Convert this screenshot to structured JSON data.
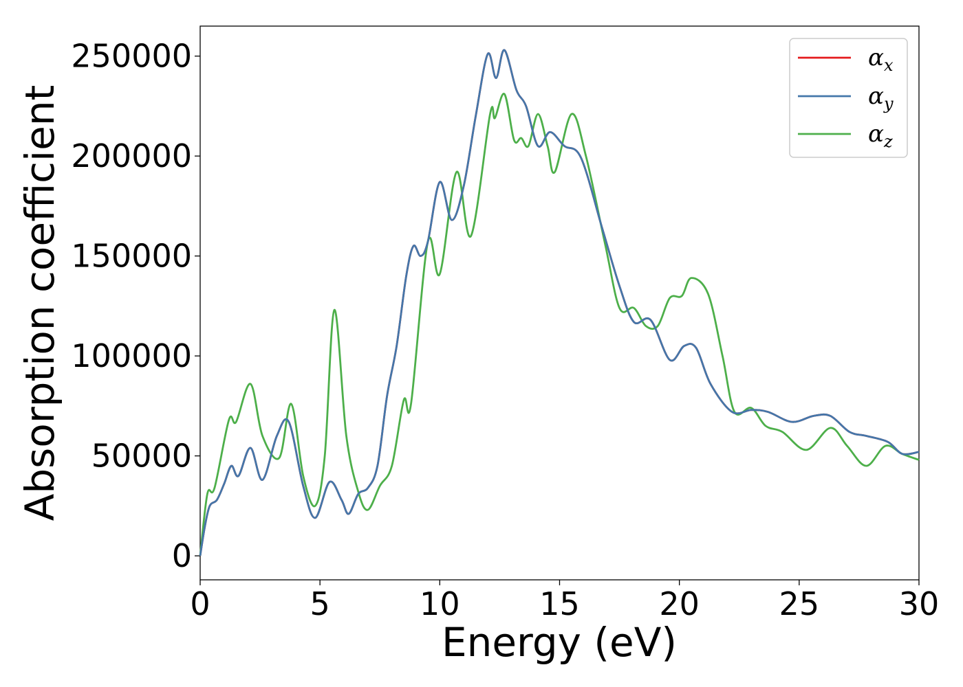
{
  "chart_data": {
    "type": "line",
    "title": "",
    "xlabel": "Energy (eV)",
    "ylabel": "Absorption coefficient",
    "xlim": [
      0,
      30
    ],
    "ylim": [
      -12000,
      265000
    ],
    "xticks": [
      0,
      5,
      10,
      15,
      20,
      25,
      30
    ],
    "yticks": [
      0,
      50000,
      100000,
      150000,
      200000,
      250000
    ],
    "grid": false,
    "legend_position": "top-right",
    "series": [
      {
        "name": "α",
        "subscript": "x",
        "color": "#e41a1c",
        "points": [
          [
            0,
            0
          ],
          [
            0.2,
            15000
          ],
          [
            0.4,
            25000
          ],
          [
            0.7,
            28000
          ],
          [
            1.0,
            36000
          ],
          [
            1.3,
            45000
          ],
          [
            1.6,
            40000
          ],
          [
            2.1,
            54000
          ],
          [
            2.6,
            38000
          ],
          [
            3.2,
            60000
          ],
          [
            3.7,
            67000
          ],
          [
            4.3,
            35000
          ],
          [
            4.8,
            19000
          ],
          [
            5.4,
            37000
          ],
          [
            5.9,
            28000
          ],
          [
            6.2,
            21000
          ],
          [
            6.6,
            31000
          ],
          [
            7.0,
            34000
          ],
          [
            7.4,
            45000
          ],
          [
            7.8,
            80000
          ],
          [
            8.2,
            105000
          ],
          [
            8.6,
            140000
          ],
          [
            8.9,
            155000
          ],
          [
            9.2,
            150000
          ],
          [
            9.5,
            157000
          ],
          [
            10.0,
            187000
          ],
          [
            10.5,
            168000
          ],
          [
            11.0,
            185000
          ],
          [
            11.5,
            220000
          ],
          [
            12.0,
            251000
          ],
          [
            12.35,
            239000
          ],
          [
            12.7,
            253000
          ],
          [
            13.2,
            233000
          ],
          [
            13.6,
            225000
          ],
          [
            14.1,
            205000
          ],
          [
            14.6,
            212000
          ],
          [
            15.2,
            205000
          ],
          [
            15.9,
            199000
          ],
          [
            16.8,
            163000
          ],
          [
            17.5,
            135000
          ],
          [
            18.1,
            117000
          ],
          [
            18.8,
            118000
          ],
          [
            19.6,
            98000
          ],
          [
            20.2,
            105000
          ],
          [
            20.7,
            104000
          ],
          [
            21.3,
            86000
          ],
          [
            22.2,
            72000
          ],
          [
            23.0,
            73000
          ],
          [
            23.7,
            72000
          ],
          [
            24.7,
            67000
          ],
          [
            25.6,
            70000
          ],
          [
            26.3,
            70000
          ],
          [
            27.1,
            62000
          ],
          [
            27.8,
            60000
          ],
          [
            28.7,
            57000
          ],
          [
            29.3,
            51000
          ],
          [
            30.0,
            52000
          ]
        ]
      },
      {
        "name": "α",
        "subscript": "y",
        "color": "#4477aa",
        "points": [
          [
            0,
            0
          ],
          [
            0.2,
            15000
          ],
          [
            0.4,
            25000
          ],
          [
            0.7,
            28000
          ],
          [
            1.0,
            36000
          ],
          [
            1.3,
            45000
          ],
          [
            1.6,
            40000
          ],
          [
            2.1,
            54000
          ],
          [
            2.6,
            38000
          ],
          [
            3.2,
            60000
          ],
          [
            3.7,
            67000
          ],
          [
            4.3,
            35000
          ],
          [
            4.8,
            19000
          ],
          [
            5.4,
            37000
          ],
          [
            5.9,
            28000
          ],
          [
            6.2,
            21000
          ],
          [
            6.6,
            31000
          ],
          [
            7.0,
            34000
          ],
          [
            7.4,
            45000
          ],
          [
            7.8,
            80000
          ],
          [
            8.2,
            105000
          ],
          [
            8.6,
            140000
          ],
          [
            8.9,
            155000
          ],
          [
            9.2,
            150000
          ],
          [
            9.5,
            157000
          ],
          [
            10.0,
            187000
          ],
          [
            10.5,
            168000
          ],
          [
            11.0,
            185000
          ],
          [
            11.5,
            220000
          ],
          [
            12.0,
            251000
          ],
          [
            12.35,
            239000
          ],
          [
            12.7,
            253000
          ],
          [
            13.2,
            233000
          ],
          [
            13.6,
            225000
          ],
          [
            14.1,
            205000
          ],
          [
            14.6,
            212000
          ],
          [
            15.2,
            205000
          ],
          [
            15.9,
            199000
          ],
          [
            16.8,
            163000
          ],
          [
            17.5,
            135000
          ],
          [
            18.1,
            117000
          ],
          [
            18.8,
            118000
          ],
          [
            19.6,
            98000
          ],
          [
            20.2,
            105000
          ],
          [
            20.7,
            104000
          ],
          [
            21.3,
            86000
          ],
          [
            22.2,
            72000
          ],
          [
            23.0,
            73000
          ],
          [
            23.7,
            72000
          ],
          [
            24.7,
            67000
          ],
          [
            25.6,
            70000
          ],
          [
            26.3,
            70000
          ],
          [
            27.1,
            62000
          ],
          [
            27.8,
            60000
          ],
          [
            28.7,
            57000
          ],
          [
            29.3,
            51000
          ],
          [
            30.0,
            52000
          ]
        ]
      },
      {
        "name": "α",
        "subscript": "z",
        "color": "#4daf4a",
        "points": [
          [
            0,
            0
          ],
          [
            0.3,
            31000
          ],
          [
            0.6,
            34000
          ],
          [
            1.2,
            68000
          ],
          [
            1.5,
            67000
          ],
          [
            2.1,
            86000
          ],
          [
            2.6,
            60000
          ],
          [
            3.3,
            49000
          ],
          [
            3.8,
            76000
          ],
          [
            4.3,
            40000
          ],
          [
            4.8,
            25000
          ],
          [
            5.2,
            50000
          ],
          [
            5.6,
            123000
          ],
          [
            6.1,
            60000
          ],
          [
            6.6,
            32000
          ],
          [
            7.0,
            23000
          ],
          [
            7.5,
            35000
          ],
          [
            8.0,
            45000
          ],
          [
            8.5,
            78000
          ],
          [
            8.8,
            76000
          ],
          [
            9.5,
            157000
          ],
          [
            10.0,
            141000
          ],
          [
            10.7,
            192000
          ],
          [
            11.3,
            160000
          ],
          [
            12.1,
            221000
          ],
          [
            12.3,
            219000
          ],
          [
            12.7,
            231000
          ],
          [
            13.1,
            208000
          ],
          [
            13.4,
            209000
          ],
          [
            13.7,
            205000
          ],
          [
            14.1,
            221000
          ],
          [
            14.5,
            205000
          ],
          [
            14.8,
            192000
          ],
          [
            15.5,
            221000
          ],
          [
            16.1,
            200000
          ],
          [
            16.9,
            156000
          ],
          [
            17.5,
            124000
          ],
          [
            18.1,
            124000
          ],
          [
            18.6,
            115000
          ],
          [
            19.1,
            115000
          ],
          [
            19.6,
            129000
          ],
          [
            20.1,
            130000
          ],
          [
            20.5,
            139000
          ],
          [
            21.2,
            131000
          ],
          [
            21.8,
            100000
          ],
          [
            22.3,
            72000
          ],
          [
            23.0,
            74000
          ],
          [
            23.6,
            65000
          ],
          [
            24.3,
            62000
          ],
          [
            25.3,
            53000
          ],
          [
            26.3,
            64000
          ],
          [
            27.0,
            55000
          ],
          [
            27.8,
            45000
          ],
          [
            28.6,
            55000
          ],
          [
            29.3,
            51000
          ],
          [
            30.0,
            48000
          ]
        ]
      }
    ]
  }
}
